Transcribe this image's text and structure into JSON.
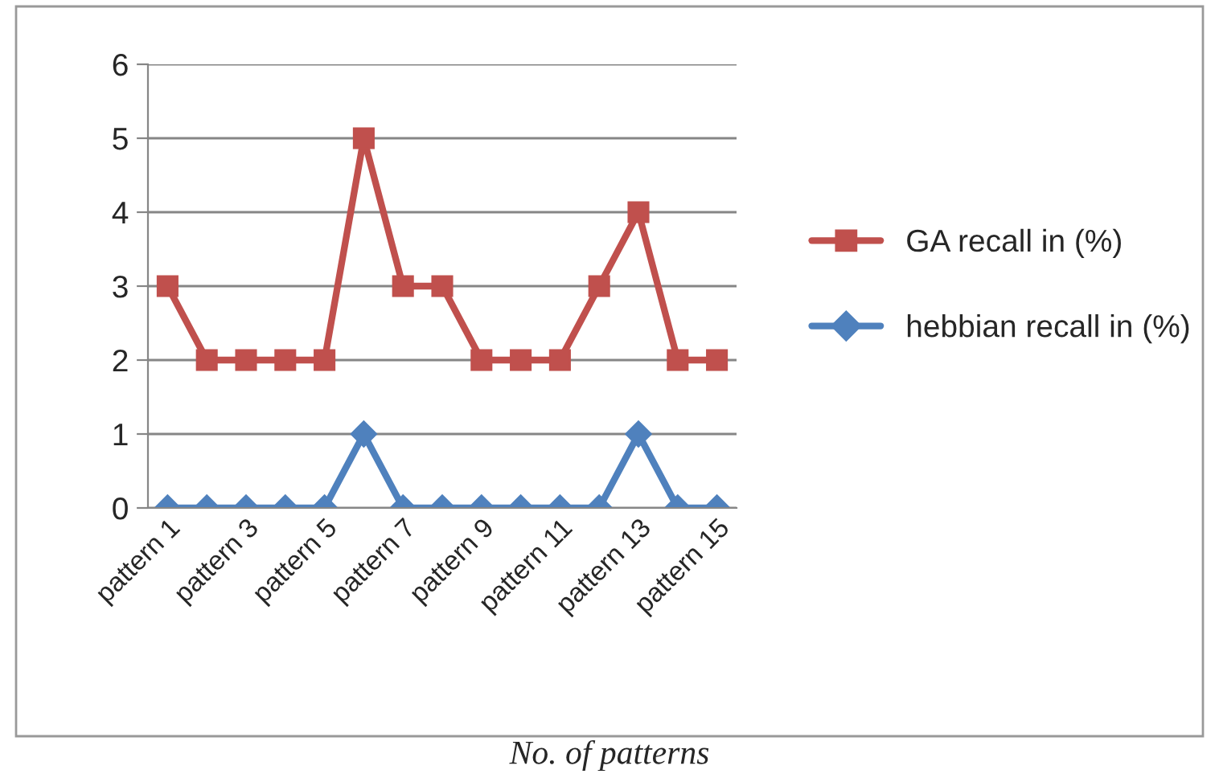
{
  "chart_data": {
    "type": "line",
    "xlabel": "No. of patterns",
    "categories": [
      "pattern 1",
      null,
      "pattern 3",
      null,
      "pattern 5",
      null,
      "pattern 7",
      null,
      "pattern 9",
      null,
      "pattern 11",
      null,
      "pattern 13",
      null,
      "pattern 15"
    ],
    "series": [
      {
        "name": "GA recall in (%)",
        "color": "#c0504d",
        "marker": "square",
        "values": [
          3,
          2,
          2,
          2,
          2,
          5,
          3,
          3,
          2,
          2,
          2,
          3,
          4,
          2,
          2
        ]
      },
      {
        "name": "hebbian recall in (%)",
        "color": "#4f81bd",
        "marker": "diamond",
        "values": [
          0,
          0,
          0,
          0,
          0,
          1,
          0,
          0,
          0,
          0,
          0,
          0,
          1,
          0,
          0
        ]
      }
    ],
    "ylim": [
      0,
      6
    ],
    "yticks": [
      0,
      1,
      2,
      3,
      4,
      5,
      6
    ],
    "grid": "y",
    "legend": "right",
    "line_style": "solid"
  }
}
